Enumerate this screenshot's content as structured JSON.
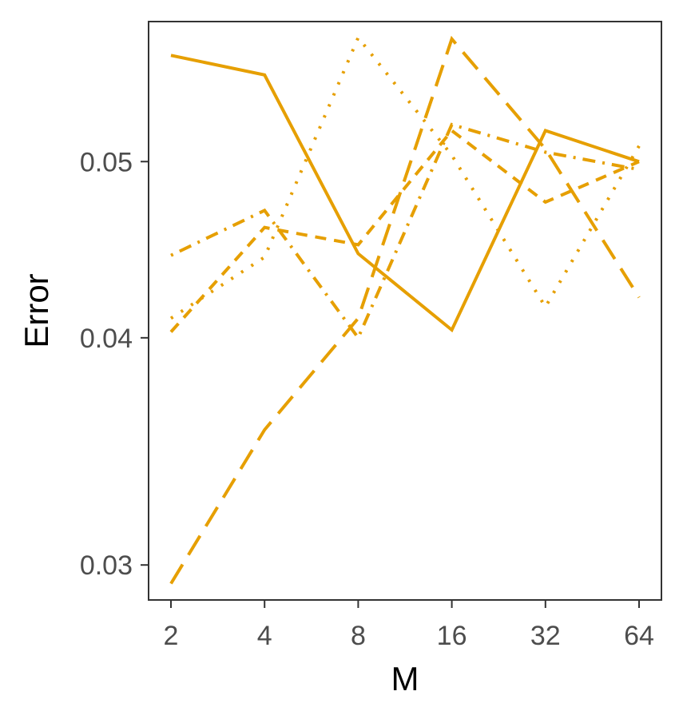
{
  "chart_data": {
    "type": "line",
    "title": "",
    "xlabel": "M",
    "ylabel": "Error",
    "x_scale": "log2",
    "y_scale": "log",
    "x": [
      2,
      4,
      8,
      16,
      32,
      64
    ],
    "x_tick_labels": [
      "2",
      "4",
      "8",
      "16",
      "32",
      "64"
    ],
    "y_ticks": [
      0.03,
      0.04,
      0.05
    ],
    "y_tick_labels": [
      "0.03",
      "0.04",
      "0.05"
    ],
    "ylim": [
      0.0287,
      0.0597
    ],
    "grid": false,
    "legend": "none",
    "color": "#E69F00",
    "series": [
      {
        "linetype": "solid",
        "values": [
          0.0572,
          0.0558,
          0.0445,
          0.0404,
          0.052,
          0.05
        ]
      },
      {
        "linetype": "longdash",
        "values": [
          0.0293,
          0.0356,
          0.041,
          0.0584,
          0.0508,
          0.0421
        ]
      },
      {
        "linetype": "dotted",
        "values": [
          0.041,
          0.0443,
          0.0585,
          0.0504,
          0.0416,
          0.051
        ]
      },
      {
        "linetype": "dashed",
        "values": [
          0.0403,
          0.046,
          0.045,
          0.052,
          0.0475,
          0.05
        ]
      },
      {
        "linetype": "dotdash",
        "values": [
          0.0444,
          0.047,
          0.04,
          0.0524,
          0.0506,
          0.0495
        ]
      }
    ]
  }
}
